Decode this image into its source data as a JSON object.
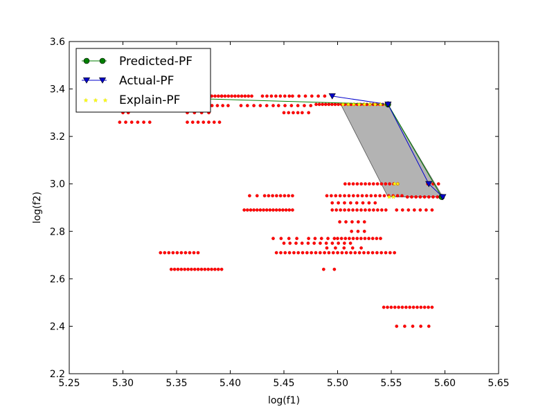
{
  "chart_data": {
    "type": "scatter",
    "title": "",
    "xlabel": "log(f1)",
    "ylabel": "log(f2)",
    "xlim": [
      5.25,
      5.65
    ],
    "ylim": [
      2.2,
      3.6
    ],
    "x_ticks": [
      5.25,
      5.3,
      5.35,
      5.4,
      5.45,
      5.5,
      5.55,
      5.6,
      5.65
    ],
    "x_tick_labels": [
      "5.25",
      "5.30",
      "5.35",
      "5.40",
      "5.45",
      "5.50",
      "5.55",
      "5.60",
      "5.65"
    ],
    "y_ticks": [
      2.2,
      2.4,
      2.6,
      2.8,
      3.0,
      3.2,
      3.4,
      3.6
    ],
    "y_tick_labels": [
      "2.2",
      "2.4",
      "2.6",
      "2.8",
      "3.0",
      "3.2",
      "3.4",
      "3.6"
    ],
    "grid": false,
    "legend_position": "top-left",
    "legend": [
      {
        "label": "Predicted-PF",
        "color": "#007f00",
        "marker": "circle",
        "line": true
      },
      {
        "label": "Actual-PF",
        "color": "#0000cc",
        "marker": "triangle-down",
        "line": true
      },
      {
        "label": "Explain-PF",
        "color": "#ffff00",
        "marker": "star",
        "line": false
      }
    ],
    "shaded_region": {
      "color": "#808080",
      "points": [
        [
          5.503,
          3.335
        ],
        [
          5.547,
          3.335
        ],
        [
          5.598,
          2.945
        ],
        [
          5.547,
          2.945
        ]
      ]
    },
    "predicted_pf": {
      "name": "Predicted-PF",
      "color": "#007f00",
      "points": [
        [
          5.29,
          3.37
        ],
        [
          5.547,
          3.335
        ],
        [
          5.597,
          2.945
        ]
      ]
    },
    "actual_pf": {
      "name": "Actual-PF",
      "color": "#0000cc",
      "points": [
        [
          5.495,
          3.37
        ],
        [
          5.547,
          3.335
        ],
        [
          5.585,
          3.0
        ],
        [
          5.598,
          2.945
        ]
      ]
    },
    "explain_pf": {
      "name": "Explain-PF",
      "color": "#ffff00",
      "points": [
        [
          5.505,
          3.335
        ],
        [
          5.51,
          3.335
        ],
        [
          5.515,
          3.335
        ],
        [
          5.52,
          3.335
        ],
        [
          5.525,
          3.335
        ],
        [
          5.53,
          3.335
        ],
        [
          5.535,
          3.335
        ],
        [
          5.54,
          3.335
        ],
        [
          5.545,
          3.335
        ],
        [
          5.548,
          2.945
        ],
        [
          5.552,
          2.945
        ],
        [
          5.553,
          3.0
        ],
        [
          5.556,
          3.0
        ]
      ]
    },
    "scatter_groups": [
      {
        "y": 3.37,
        "xs": [
          5.29,
          5.392
        ],
        "n": 34
      },
      {
        "y": 3.37,
        "xs": [
          5.392,
          5.42
        ],
        "n": 10
      },
      {
        "y": 3.37,
        "xs": [
          5.43,
          5.455
        ],
        "n": 7
      },
      {
        "y": 3.37,
        "xs": [
          5.458,
          5.488
        ],
        "n": 6
      },
      {
        "y": 3.36,
        "xs": [
          5.29,
          5.322
        ],
        "n": 8
      },
      {
        "y": 3.33,
        "xs": [
          5.29,
          5.322
        ],
        "n": 8
      },
      {
        "y": 3.33,
        "xs": [
          5.355,
          5.383
        ],
        "n": 8
      },
      {
        "y": 3.33,
        "xs": [
          5.388,
          5.398
        ],
        "n": 3
      },
      {
        "y": 3.33,
        "xs": [
          5.41,
          5.44
        ],
        "n": 6
      },
      {
        "y": 3.33,
        "xs": [
          5.445,
          5.475
        ],
        "n": 6
      },
      {
        "y": 3.335,
        "xs": [
          5.48,
          5.548
        ],
        "n": 24
      },
      {
        "y": 3.3,
        "xs": [
          5.3,
          5.305
        ],
        "n": 2
      },
      {
        "y": 3.3,
        "xs": [
          5.36,
          5.38
        ],
        "n": 4
      },
      {
        "y": 3.3,
        "xs": [
          5.45,
          5.463
        ],
        "n": 4
      },
      {
        "y": 3.3,
        "xs": [
          5.467,
          5.473
        ],
        "n": 2
      },
      {
        "y": 3.26,
        "xs": [
          5.297,
          5.325
        ],
        "n": 6
      },
      {
        "y": 3.26,
        "xs": [
          5.36,
          5.39
        ],
        "n": 7
      },
      {
        "y": 3.0,
        "xs": [
          5.507,
          5.556
        ],
        "n": 14
      },
      {
        "y": 3.0,
        "xs": [
          5.584,
          5.594
        ],
        "n": 3
      },
      {
        "y": 2.95,
        "xs": [
          5.418,
          5.425
        ],
        "n": 2
      },
      {
        "y": 2.95,
        "xs": [
          5.432,
          5.458
        ],
        "n": 8
      },
      {
        "y": 2.95,
        "xs": [
          5.49,
          5.56
        ],
        "n": 18
      },
      {
        "y": 2.945,
        "xs": [
          5.565,
          5.597
        ],
        "n": 9
      },
      {
        "y": 2.92,
        "xs": [
          5.495,
          5.535
        ],
        "n": 8
      },
      {
        "y": 2.89,
        "xs": [
          5.413,
          5.458
        ],
        "n": 16
      },
      {
        "y": 2.89,
        "xs": [
          5.495,
          5.545
        ],
        "n": 14
      },
      {
        "y": 2.89,
        "xs": [
          5.555,
          5.588
        ],
        "n": 7
      },
      {
        "y": 2.84,
        "xs": [
          5.502,
          5.525
        ],
        "n": 5
      },
      {
        "y": 2.8,
        "xs": [
          5.513,
          5.525
        ],
        "n": 3
      },
      {
        "y": 2.77,
        "xs": [
          5.44,
          5.462
        ],
        "n": 4
      },
      {
        "y": 2.77,
        "xs": [
          5.473,
          5.497
        ],
        "n": 5
      },
      {
        "y": 2.77,
        "xs": [
          5.5,
          5.54
        ],
        "n": 12
      },
      {
        "y": 2.75,
        "xs": [
          5.45,
          5.512
        ],
        "n": 12
      },
      {
        "y": 2.73,
        "xs": [
          5.49,
          5.522
        ],
        "n": 5
      },
      {
        "y": 2.71,
        "xs": [
          5.335,
          5.37
        ],
        "n": 10
      },
      {
        "y": 2.71,
        "xs": [
          5.443,
          5.553
        ],
        "n": 28
      },
      {
        "y": 2.64,
        "xs": [
          5.345,
          5.392
        ],
        "n": 16
      },
      {
        "y": 2.64,
        "xs": [
          5.487,
          5.497
        ],
        "n": 2
      },
      {
        "y": 2.48,
        "xs": [
          5.543,
          5.588
        ],
        "n": 14
      },
      {
        "y": 2.4,
        "xs": [
          5.555,
          5.585
        ],
        "n": 5
      }
    ]
  }
}
